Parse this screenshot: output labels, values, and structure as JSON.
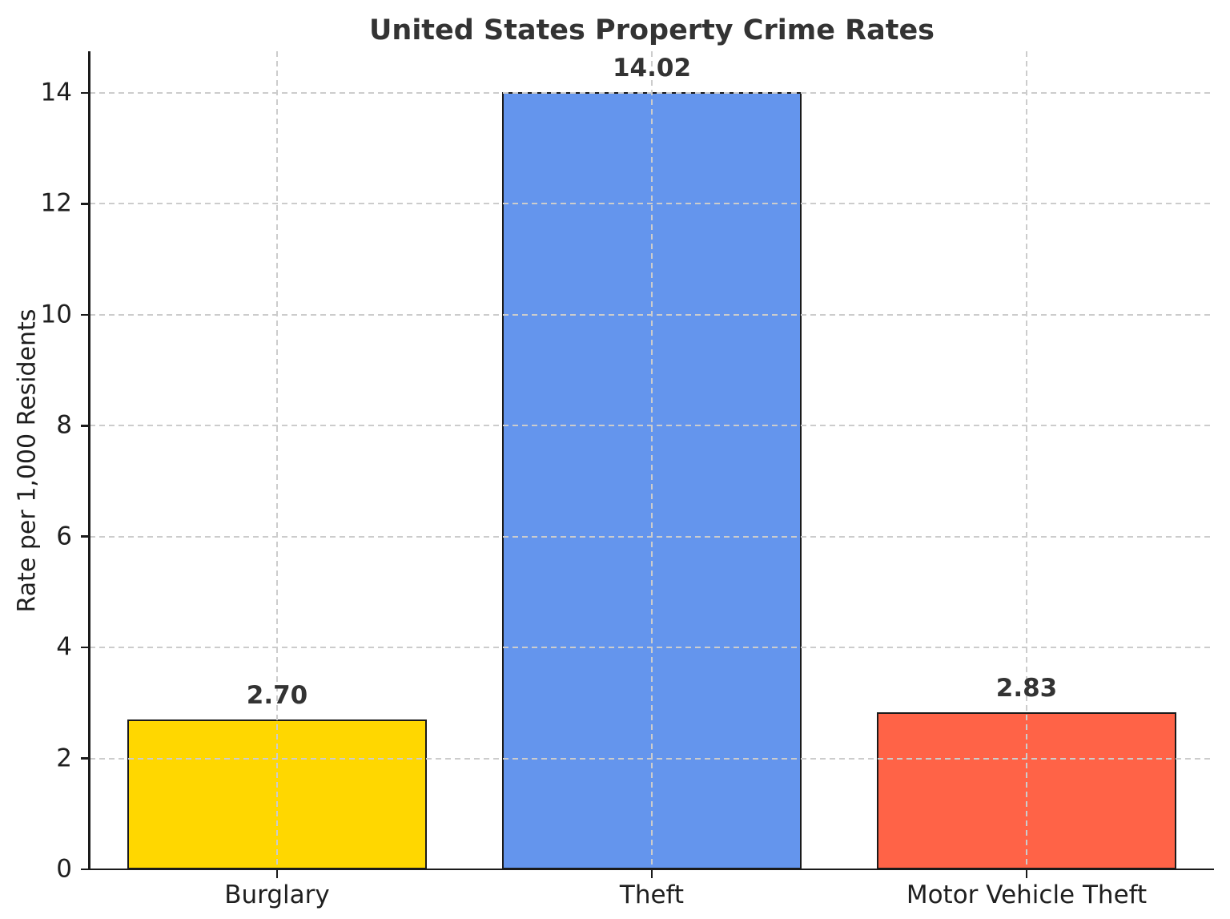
{
  "title": "United States Property Crime Rates",
  "chart_data": {
    "type": "bar",
    "title": "United States Property Crime Rates",
    "categories": [
      "Burglary",
      "Theft",
      "Motor Vehicle Theft"
    ],
    "values": [
      2.7,
      14.02,
      2.83
    ],
    "value_labels": [
      "2.70",
      "14.02",
      "2.83"
    ],
    "bar_colors": [
      "#FFD700",
      "#6495ED",
      "#FF6347"
    ],
    "bar_edge_color": "#1a1a1a",
    "xlabel": "",
    "ylabel": "Rate per 1,000 Residents",
    "ylim": [
      0,
      14.75
    ],
    "yticks": [
      0,
      2,
      4,
      6,
      8,
      10,
      12,
      14
    ],
    "grid": true,
    "grid_style": "dashed",
    "grid_color": "#cccccc",
    "legend_position": "none",
    "title_color": "#333333",
    "tick_label_color": "#1f1f1f",
    "background_color": "#ffffff",
    "bar_width_fraction": 0.8
  }
}
